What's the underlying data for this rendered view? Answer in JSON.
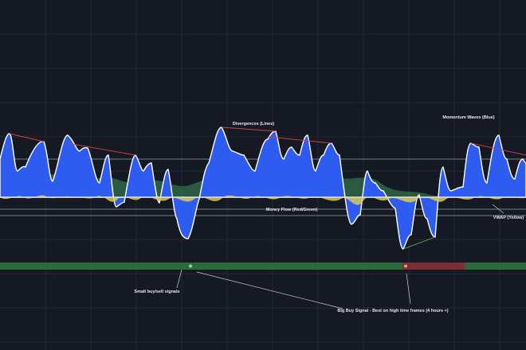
{
  "annotations": {
    "divergences": "Divergences (Lines)",
    "momentum_waves": "Momentum Waves (Blue)",
    "money_flow": "Money Flow (Red/Green)",
    "vwap": "VWAP (Yellow)",
    "small_signals": "Small buy/sell signals",
    "big_buy_signal": "Big Buy Signal - Best on high time frames (4 hours +)"
  }
}
